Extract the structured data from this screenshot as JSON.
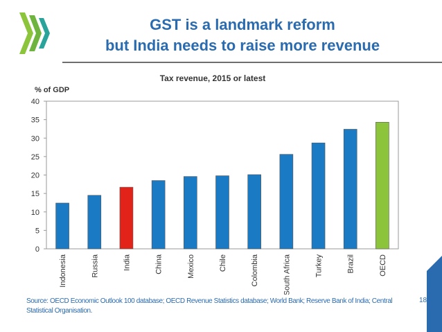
{
  "slide": {
    "title_line1": "GST is a landmark reform",
    "title_line2": "but India needs to raise more revenue",
    "source": "Source: OECD Economic Outlook 100 database; OECD Revenue Statistics database; World Bank; Reserve Bank of India; Central Statistical Organisation.",
    "page_number": "18"
  },
  "colors": {
    "title": "#2a6bb0",
    "bar_default": "#1a7bc4",
    "bar_india": "#e2231a",
    "bar_oecd": "#8cc43c",
    "logo_green": "#8cc43c",
    "logo_teal": "#2aa39a"
  },
  "chart_data": {
    "type": "bar",
    "title": "Tax revenue, 2015 or latest",
    "ylabel": "% of GDP",
    "ylim": [
      0,
      40
    ],
    "yticks": [
      0,
      5,
      10,
      15,
      20,
      25,
      30,
      35,
      40
    ],
    "categories": [
      "Indonesia",
      "Russia",
      "India",
      "China",
      "Mexico",
      "Chile",
      "Colombia",
      "South Africa",
      "Turkey",
      "Brazil",
      "OECD"
    ],
    "values": [
      12.4,
      14.5,
      16.7,
      18.5,
      19.6,
      19.8,
      20.1,
      25.6,
      28.7,
      32.4,
      34.3
    ],
    "bar_colors": [
      "#1a7bc4",
      "#1a7bc4",
      "#e2231a",
      "#1a7bc4",
      "#1a7bc4",
      "#1a7bc4",
      "#1a7bc4",
      "#1a7bc4",
      "#1a7bc4",
      "#1a7bc4",
      "#8cc43c"
    ],
    "grid": false,
    "legend": "none"
  }
}
